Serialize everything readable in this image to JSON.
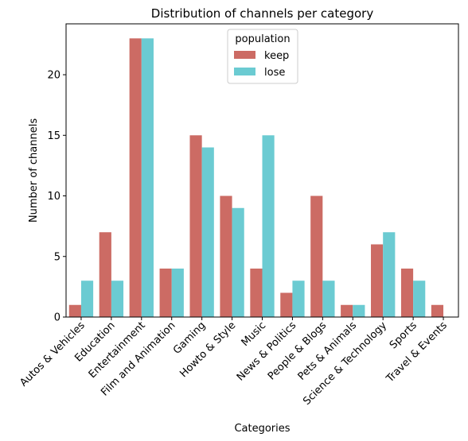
{
  "chart_data": {
    "type": "bar",
    "title": "Distribution of channels per category",
    "xlabel": "Categories",
    "ylabel": "Number of channels",
    "categories": [
      "Autos & Vehicles",
      "Education",
      "Entertainment",
      "Film and Animation",
      "Gaming",
      "Howto & Style",
      "Music",
      "News & Politics",
      "People & Blogs",
      "Pets & Animals",
      "Science & Technology",
      "Sports",
      "Travel & Events"
    ],
    "series": [
      {
        "name": "keep",
        "color": "#cc6b64",
        "values": [
          1,
          7,
          23,
          4,
          15,
          10,
          4,
          2,
          10,
          1,
          6,
          4,
          1
        ]
      },
      {
        "name": "lose",
        "color": "#6bcbd2",
        "values": [
          3,
          3,
          23,
          4,
          14,
          9,
          15,
          3,
          3,
          1,
          7,
          3,
          0
        ]
      }
    ],
    "ylim": [
      0,
      24.2
    ],
    "yticks": [
      0,
      5,
      10,
      15,
      20
    ],
    "legend": {
      "title": "population",
      "placement": "upper-center"
    },
    "grid": false
  }
}
